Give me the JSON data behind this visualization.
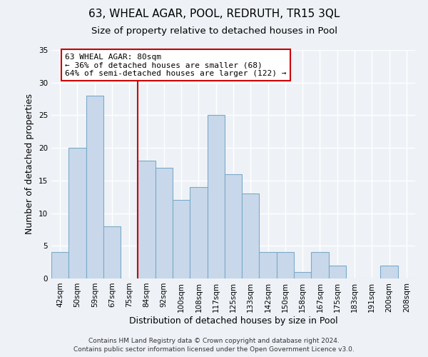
{
  "title": "63, WHEAL AGAR, POOL, REDRUTH, TR15 3QL",
  "subtitle": "Size of property relative to detached houses in Pool",
  "xlabel": "Distribution of detached houses by size in Pool",
  "ylabel": "Number of detached properties",
  "bin_labels": [
    "42sqm",
    "50sqm",
    "59sqm",
    "67sqm",
    "75sqm",
    "84sqm",
    "92sqm",
    "100sqm",
    "108sqm",
    "117sqm",
    "125sqm",
    "133sqm",
    "142sqm",
    "150sqm",
    "158sqm",
    "167sqm",
    "175sqm",
    "183sqm",
    "191sqm",
    "200sqm",
    "208sqm"
  ],
  "bar_values": [
    4,
    20,
    28,
    8,
    0,
    18,
    17,
    12,
    14,
    25,
    16,
    13,
    4,
    4,
    1,
    4,
    2,
    0,
    0,
    2,
    0
  ],
  "bar_color": "#c8d8ea",
  "bar_edge_color": "#7aaac8",
  "annotation_title": "63 WHEAL AGAR: 80sqm",
  "annotation_line1": "← 36% of detached houses are smaller (68)",
  "annotation_line2": "64% of semi-detached houses are larger (122) →",
  "annotation_box_color": "#ffffff",
  "annotation_box_edge": "#cc0000",
  "vline_color": "#cc0000",
  "vline_x_index": 5,
  "ylim": [
    0,
    35
  ],
  "yticks": [
    0,
    5,
    10,
    15,
    20,
    25,
    30,
    35
  ],
  "footnote1": "Contains HM Land Registry data © Crown copyright and database right 2024.",
  "footnote2": "Contains public sector information licensed under the Open Government Licence v3.0.",
  "background_color": "#eef2f7",
  "grid_color": "#ffffff",
  "title_fontsize": 11,
  "subtitle_fontsize": 9.5,
  "axis_label_fontsize": 9,
  "tick_fontsize": 7.5,
  "annotation_fontsize": 8,
  "footnote_fontsize": 6.5
}
